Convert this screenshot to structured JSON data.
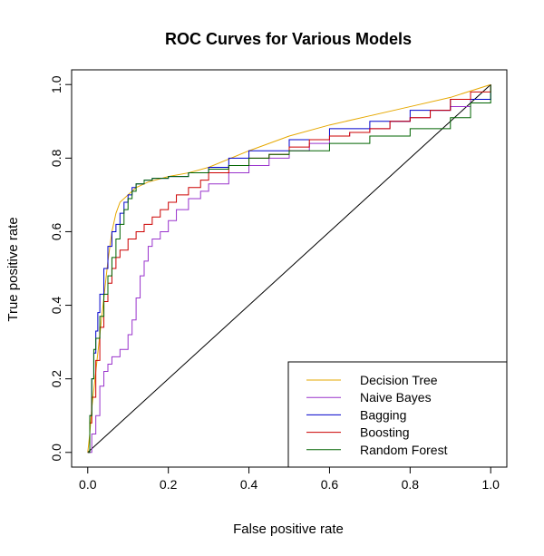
{
  "chart_data": {
    "type": "line",
    "title": "ROC Curves for Various Models",
    "xlabel": "False positive rate",
    "ylabel": "True positive rate",
    "xlim": [
      -0.04,
      1.04
    ],
    "ylim": [
      -0.04,
      1.04
    ],
    "xticks": [
      "0.0",
      "0.2",
      "0.4",
      "0.6",
      "0.8",
      "1.0"
    ],
    "yticks": [
      "0.0",
      "0.2",
      "0.4",
      "0.6",
      "0.8",
      "1.0"
    ],
    "grid": false,
    "legend_position": "bottom-right",
    "reference_line": {
      "x": [
        0,
        1
      ],
      "y": [
        0,
        1
      ],
      "color": "#000000"
    },
    "series": [
      {
        "name": "Decision Tree",
        "color": "#E6A800",
        "step": false,
        "x": [
          0,
          0.005,
          0.01,
          0.015,
          0.02,
          0.03,
          0.04,
          0.05,
          0.06,
          0.07,
          0.08,
          0.1,
          0.12,
          0.15,
          0.2,
          0.25,
          0.3,
          0.4,
          0.5,
          0.6,
          0.7,
          0.8,
          0.9,
          1.0
        ],
        "y": [
          0,
          0.05,
          0.12,
          0.17,
          0.22,
          0.32,
          0.42,
          0.52,
          0.6,
          0.65,
          0.68,
          0.7,
          0.72,
          0.735,
          0.75,
          0.76,
          0.775,
          0.82,
          0.86,
          0.89,
          0.915,
          0.94,
          0.965,
          1.0
        ]
      },
      {
        "name": "Naive Bayes",
        "color": "#9932CC",
        "step": true,
        "x": [
          0,
          0.01,
          0.02,
          0.03,
          0.04,
          0.05,
          0.06,
          0.08,
          0.1,
          0.11,
          0.12,
          0.13,
          0.14,
          0.15,
          0.16,
          0.18,
          0.2,
          0.22,
          0.25,
          0.28,
          0.3,
          0.35,
          0.4,
          0.45,
          0.5,
          0.55,
          0.6,
          0.65,
          0.7,
          0.75,
          0.8,
          0.85,
          0.9,
          0.95,
          1.0
        ],
        "y": [
          0,
          0.05,
          0.1,
          0.18,
          0.22,
          0.24,
          0.26,
          0.28,
          0.32,
          0.36,
          0.42,
          0.48,
          0.52,
          0.56,
          0.58,
          0.6,
          0.63,
          0.66,
          0.69,
          0.71,
          0.73,
          0.76,
          0.78,
          0.8,
          0.82,
          0.84,
          0.86,
          0.87,
          0.88,
          0.9,
          0.91,
          0.93,
          0.94,
          0.96,
          1.0
        ]
      },
      {
        "name": "Bagging",
        "color": "#0000CC",
        "step": true,
        "x": [
          0,
          0.005,
          0.01,
          0.015,
          0.02,
          0.025,
          0.03,
          0.04,
          0.05,
          0.06,
          0.07,
          0.08,
          0.09,
          0.1,
          0.11,
          0.12,
          0.14,
          0.16,
          0.2,
          0.25,
          0.3,
          0.35,
          0.4,
          0.5,
          0.6,
          0.7,
          0.8,
          0.9,
          1.0
        ],
        "y": [
          0,
          0.1,
          0.2,
          0.27,
          0.33,
          0.38,
          0.43,
          0.5,
          0.56,
          0.6,
          0.62,
          0.65,
          0.68,
          0.7,
          0.72,
          0.73,
          0.74,
          0.745,
          0.75,
          0.76,
          0.775,
          0.8,
          0.82,
          0.85,
          0.88,
          0.9,
          0.93,
          0.96,
          1.0
        ]
      },
      {
        "name": "Boosting",
        "color": "#CC0000",
        "step": true,
        "x": [
          0,
          0.005,
          0.01,
          0.02,
          0.03,
          0.04,
          0.05,
          0.06,
          0.07,
          0.08,
          0.1,
          0.12,
          0.14,
          0.16,
          0.18,
          0.2,
          0.22,
          0.25,
          0.28,
          0.3,
          0.35,
          0.4,
          0.45,
          0.5,
          0.55,
          0.6,
          0.65,
          0.7,
          0.75,
          0.8,
          0.85,
          0.9,
          0.95,
          1.0
        ],
        "y": [
          0,
          0.08,
          0.15,
          0.25,
          0.34,
          0.41,
          0.46,
          0.5,
          0.53,
          0.55,
          0.58,
          0.6,
          0.62,
          0.64,
          0.66,
          0.68,
          0.7,
          0.72,
          0.74,
          0.76,
          0.78,
          0.8,
          0.81,
          0.83,
          0.85,
          0.86,
          0.87,
          0.88,
          0.9,
          0.91,
          0.93,
          0.96,
          0.98,
          1.0
        ]
      },
      {
        "name": "Random Forest",
        "color": "#006400",
        "step": true,
        "x": [
          0,
          0.005,
          0.01,
          0.015,
          0.02,
          0.03,
          0.04,
          0.05,
          0.06,
          0.07,
          0.08,
          0.09,
          0.1,
          0.11,
          0.12,
          0.14,
          0.16,
          0.2,
          0.25,
          0.3,
          0.35,
          0.4,
          0.45,
          0.5,
          0.6,
          0.7,
          0.8,
          0.9,
          0.95,
          1.0
        ],
        "y": [
          0,
          0.1,
          0.2,
          0.28,
          0.31,
          0.37,
          0.43,
          0.48,
          0.53,
          0.58,
          0.62,
          0.66,
          0.69,
          0.71,
          0.73,
          0.74,
          0.745,
          0.75,
          0.76,
          0.77,
          0.78,
          0.8,
          0.81,
          0.82,
          0.84,
          0.86,
          0.88,
          0.91,
          0.95,
          1.0
        ]
      }
    ]
  }
}
